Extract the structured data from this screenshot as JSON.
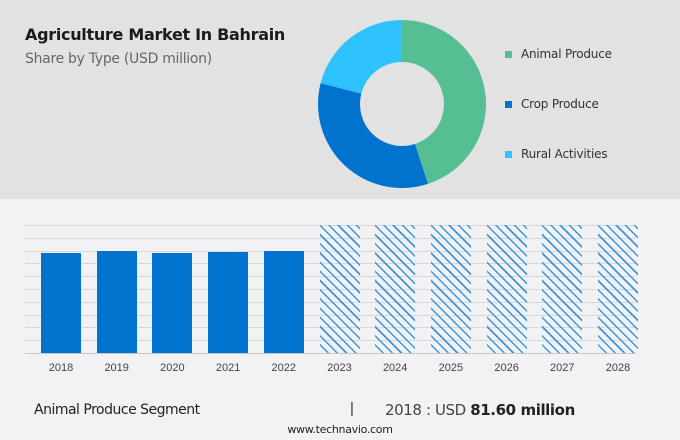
{
  "header": {
    "title": "Agriculture Market In Bahrain",
    "subtitle": "Share by Type (USD million)"
  },
  "legend": [
    {
      "label": "Animal Produce",
      "color": "#55bf93"
    },
    {
      "label": "Crop Produce",
      "color": "#0073cf"
    },
    {
      "label": "Rural Activities",
      "color": "#2ec3ff"
    }
  ],
  "footer": {
    "segment_label": "Animal Produce Segment",
    "separator": "|",
    "value_prefix": "2018 : USD",
    "value_bold": "81.60 million",
    "source": "www.technavio.com"
  },
  "chart_data": [
    {
      "type": "pie",
      "title": "Agriculture Market In Bahrain",
      "subtitle": "Share by Type (USD million)",
      "donut": true,
      "categories": [
        "Animal Produce",
        "Crop Produce",
        "Rural Activities"
      ],
      "values": [
        45,
        34,
        21
      ],
      "colors": [
        "#55bf93",
        "#0073cf",
        "#2ec3ff"
      ],
      "legend_position": "right"
    },
    {
      "type": "bar",
      "title": "Animal Produce Segment",
      "categories": [
        "2018",
        "2019",
        "2020",
        "2021",
        "2022",
        "2023",
        "2024",
        "2025",
        "2026",
        "2027",
        "2028"
      ],
      "values": [
        81.6,
        82.5,
        81.3,
        81.9,
        82.8,
        null,
        null,
        null,
        null,
        null,
        null
      ],
      "forecast": [
        false,
        false,
        false,
        false,
        false,
        true,
        true,
        true,
        true,
        true,
        true
      ],
      "annotation": "2018 : USD 81.60 million",
      "xlabel": "",
      "ylabel": "",
      "grid": true,
      "y_axis_labels_shown": false
    }
  ]
}
